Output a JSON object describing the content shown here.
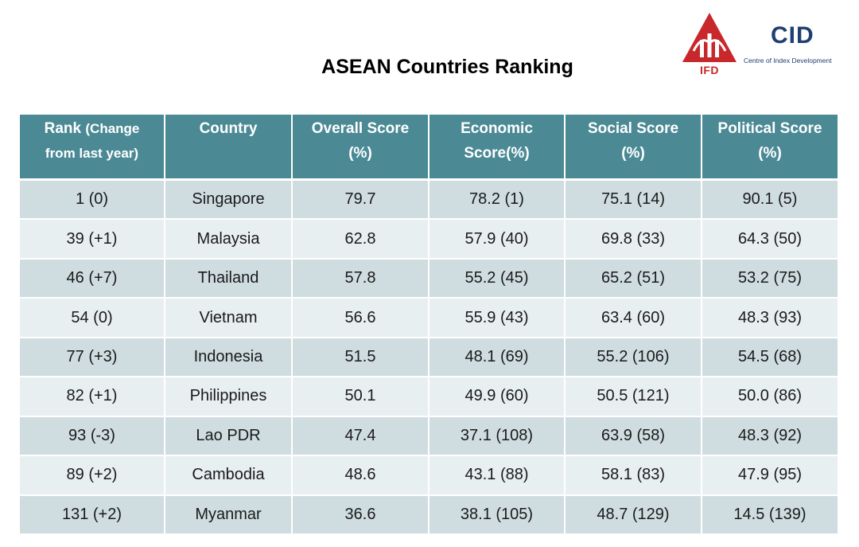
{
  "title": "ASEAN Countries Ranking",
  "logos": {
    "ifd": {
      "text": "IFD",
      "color": "#c8272b"
    },
    "cid": {
      "mark": "CID",
      "caption": "Centre of Index Development",
      "color": "#1e3f73"
    }
  },
  "colors": {
    "header_bg": "#4b8a95",
    "row_dark": "#cfdde0",
    "row_light": "#e8eff0"
  },
  "table": {
    "headers": {
      "rank_line1": "Rank",
      "rank_small": "(Change",
      "rank_line2": "from last year)",
      "country": "Country",
      "overall_line1": "Overall Score",
      "overall_line2": "(%)",
      "economic_line1": "Economic",
      "economic_line2": "Score(%)",
      "social_line1": "Social Score",
      "social_line2": "(%)",
      "political_line1": "Political Score",
      "political_line2": "(%)"
    },
    "rows": [
      {
        "rank": "1 (0)",
        "country": "Singapore",
        "overall": "79.7",
        "economic": "78.2 (1)",
        "social": "75.1 (14)",
        "political": "90.1 (5)"
      },
      {
        "rank": "39 (+1)",
        "country": "Malaysia",
        "overall": "62.8",
        "economic": "57.9 (40)",
        "social": "69.8 (33)",
        "political": "64.3 (50)"
      },
      {
        "rank": "46 (+7)",
        "country": "Thailand",
        "overall": "57.8",
        "economic": "55.2 (45)",
        "social": "65.2 (51)",
        "political": "53.2 (75)"
      },
      {
        "rank": "54 (0)",
        "country": "Vietnam",
        "overall": "56.6",
        "economic": "55.9 (43)",
        "social": "63.4 (60)",
        "political": "48.3 (93)"
      },
      {
        "rank": "77 (+3)",
        "country": "Indonesia",
        "overall": "51.5",
        "economic": "48.1 (69)",
        "social": "55.2 (106)",
        "political": "54.5 (68)"
      },
      {
        "rank": "82 (+1)",
        "country": "Philippines",
        "overall": "50.1",
        "economic": "49.9 (60)",
        "social": "50.5 (121)",
        "political": "50.0 (86)"
      },
      {
        "rank": "93 (-3)",
        "country": "Lao PDR",
        "overall": "47.4",
        "economic": "37.1 (108)",
        "social": "63.9 (58)",
        "political": "48.3 (92)"
      },
      {
        "rank": "89 (+2)",
        "country": "Cambodia",
        "overall": "48.6",
        "economic": "43.1 (88)",
        "social": "58.1 (83)",
        "political": "47.9 (95)"
      },
      {
        "rank": "131 (+2)",
        "country": "Myanmar",
        "overall": "36.6",
        "economic": "38.1 (105)",
        "social": "48.7 (129)",
        "political": "14.5 (139)"
      }
    ]
  }
}
